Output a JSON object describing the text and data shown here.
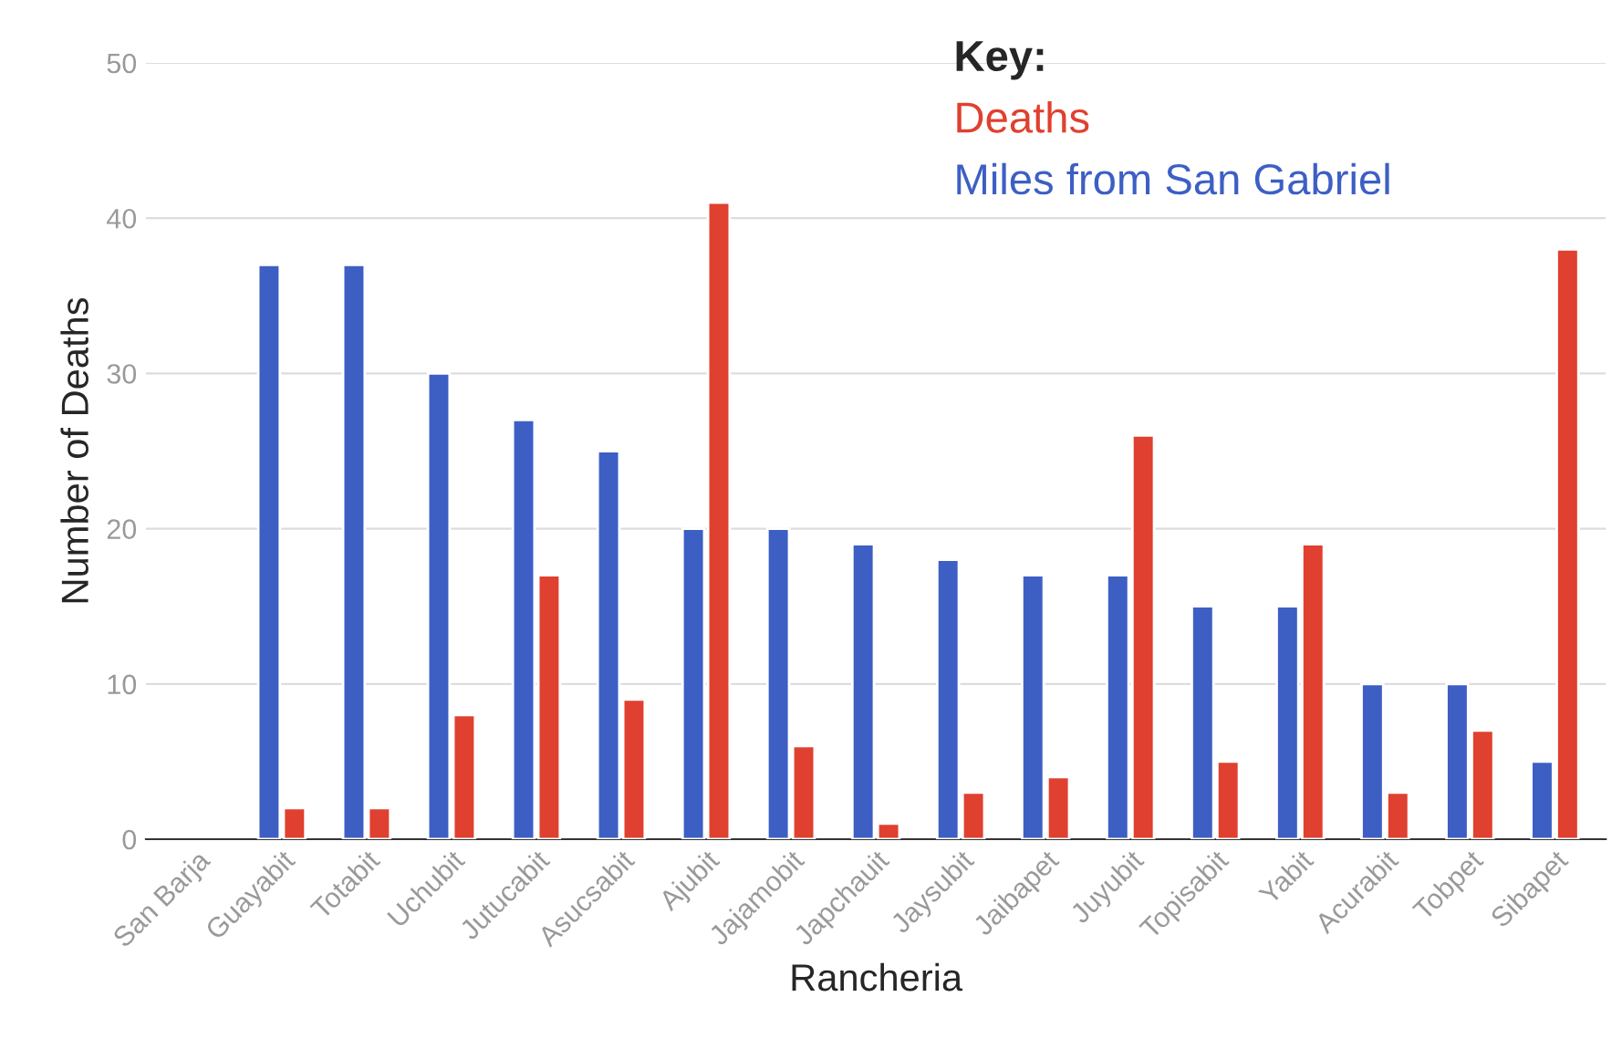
{
  "chart_data": {
    "type": "bar",
    "xlabel": "Rancheria",
    "ylabel": "Number of Deaths",
    "legend_title": "Key:",
    "categories": [
      "San Barja",
      "Guayabit",
      "Totabit",
      "Uchubit",
      "Jutucabit",
      "Asucsabit",
      "Ajubit",
      "Jajamobit",
      "Japchauit",
      "Jaysubit",
      "Jaibapet",
      "Juyubit",
      "Topisabit",
      "Yabit",
      "Acurabit",
      "Tobpet",
      "Sibapet"
    ],
    "series": [
      {
        "name": "Deaths",
        "color": "#e0402f",
        "values": [
          null,
          2,
          2,
          8,
          17,
          9,
          41,
          6,
          1,
          3,
          4,
          26,
          5,
          19,
          3,
          7,
          38
        ]
      },
      {
        "name": "Miles from San Gabriel",
        "color": "#3d5fc4",
        "values": [
          null,
          37,
          37,
          30,
          27,
          25,
          20,
          20,
          19,
          18,
          17,
          17,
          15,
          15,
          10,
          10,
          5
        ]
      }
    ],
    "ylim": [
      0,
      50
    ],
    "yticks": [
      0,
      10,
      20,
      30,
      40,
      50
    ],
    "grid": "y",
    "legend": "top right"
  }
}
